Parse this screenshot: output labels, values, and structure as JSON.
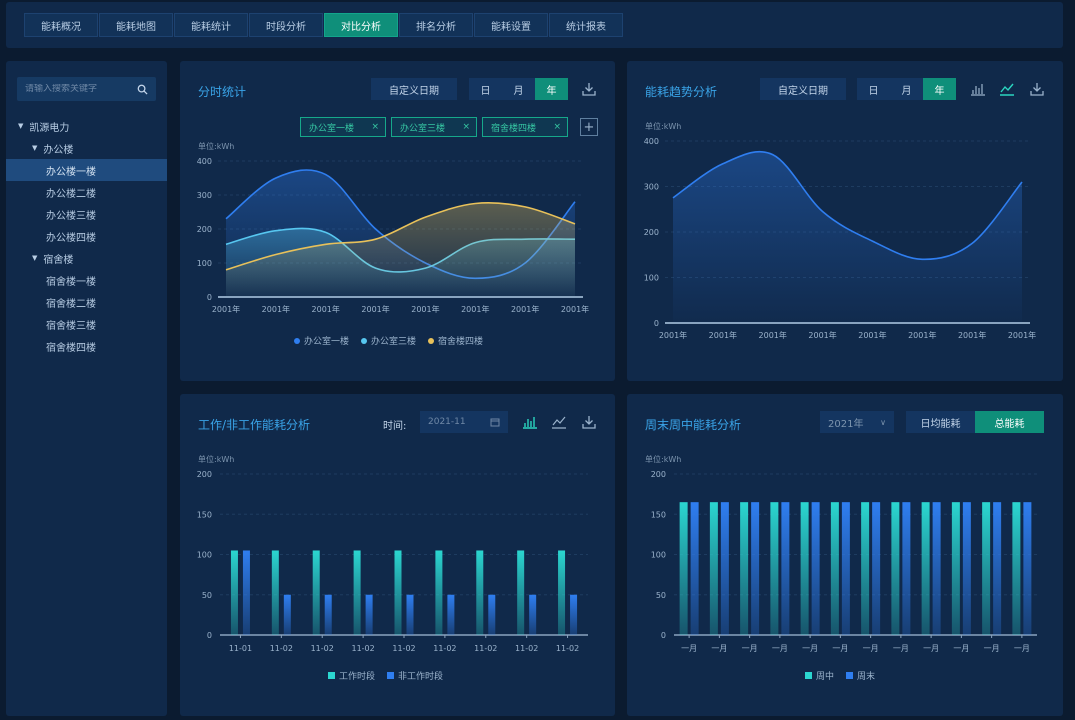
{
  "nav": {
    "tabs": [
      {
        "label": "能耗概况"
      },
      {
        "label": "能耗地图"
      },
      {
        "label": "能耗统计"
      },
      {
        "label": "时段分析"
      },
      {
        "label": "对比分析"
      },
      {
        "label": "排名分析"
      },
      {
        "label": "能耗设置"
      },
      {
        "label": "统计报表"
      }
    ],
    "active_index": 4
  },
  "sidebar": {
    "search_placeholder": "请输入搜索关键字",
    "tree": {
      "root": "凯源电力",
      "groups": [
        {
          "label": "办公楼",
          "items": [
            "办公楼一楼",
            "办公楼二楼",
            "办公楼三楼",
            "办公楼四楼"
          ]
        },
        {
          "label": "宿舍楼",
          "items": [
            "宿舍楼一楼",
            "宿舍楼二楼",
            "宿舍楼三楼",
            "宿舍楼四楼"
          ]
        }
      ],
      "selected": "办公楼一楼"
    }
  },
  "panel_hourly": {
    "title": "分时统计",
    "custom_date_label": "自定义日期",
    "segments": [
      "日",
      "月",
      "年"
    ],
    "active_segment": 2,
    "chips": [
      "办公室一楼",
      "办公室三楼",
      "宿舍楼四楼"
    ],
    "chip_close": "×",
    "add_chip": "+",
    "unit": "单位:kWh"
  },
  "panel_trend": {
    "title": "能耗趋势分析",
    "custom_date_label": "自定义日期",
    "segments": [
      "日",
      "月",
      "年"
    ],
    "active_segment": 2,
    "unit": "单位:kWh"
  },
  "panel_work": {
    "title": "工作/非工作能耗分析",
    "time_label": "时间:",
    "date_value": "2021-11",
    "unit": "单位:kWh"
  },
  "panel_weekend": {
    "title": "周末周中能耗分析",
    "year_value": "2021年",
    "toggle": [
      "日均能耗",
      "总能耗"
    ],
    "active_toggle": 1,
    "unit": "单位:kWh"
  },
  "colors": {
    "accent": "#0f8f7a",
    "title": "#3aa4e8",
    "blue": "#2f7ef0",
    "cyan": "#57c7f0",
    "yellow": "#e8c15a",
    "teal_bar": "#2bd6d0"
  },
  "chart_data": [
    {
      "type": "line",
      "x": [
        "2001年",
        "2001年",
        "2001年",
        "2001年",
        "2001年",
        "2001年",
        "2001年",
        "2001年"
      ],
      "ylim": [
        0,
        400
      ],
      "yticks": [
        "0",
        "100",
        "200",
        "300",
        "400"
      ],
      "area": true,
      "grid": true,
      "legend_position": "bottom",
      "series": [
        {
          "name": "办公室一楼",
          "color": "#2f7ef0",
          "values": [
            230,
            350,
            360,
            200,
            100,
            55,
            100,
            280
          ]
        },
        {
          "name": "办公室三楼",
          "color": "#57c7f0",
          "values": [
            155,
            195,
            190,
            85,
            85,
            160,
            170,
            170
          ]
        },
        {
          "name": "宿舍楼四楼",
          "color": "#e8c15a",
          "values": [
            80,
            125,
            155,
            170,
            235,
            275,
            265,
            215
          ]
        }
      ]
    },
    {
      "type": "line",
      "x": [
        "2001年",
        "2001年",
        "2001年",
        "2001年",
        "2001年",
        "2001年",
        "2001年",
        "2001年"
      ],
      "ylim": [
        0,
        400
      ],
      "yticks": [
        "0",
        "100",
        "200",
        "300",
        "400"
      ],
      "area": true,
      "grid": true,
      "series": [
        {
          "color": "#2f7ef0",
          "values": [
            275,
            350,
            370,
            245,
            180,
            140,
            175,
            310
          ]
        }
      ]
    },
    {
      "type": "bar",
      "categories": [
        "11-01",
        "11-02",
        "11-02",
        "11-02",
        "11-02",
        "11-02",
        "11-02",
        "11-02",
        "11-02"
      ],
      "ylim": [
        0,
        200
      ],
      "yticks": [
        "0",
        "50",
        "100",
        "150",
        "200"
      ],
      "grid": true,
      "legend_position": "bottom",
      "series": [
        {
          "name": "工作时段",
          "color": "#2bd6d0",
          "values": [
            105,
            105,
            105,
            105,
            105,
            105,
            105,
            105,
            105
          ]
        },
        {
          "name": "非工作时段",
          "color": "#2f7ef0",
          "values": [
            105,
            50,
            50,
            50,
            50,
            50,
            50,
            50,
            50
          ]
        }
      ]
    },
    {
      "type": "bar",
      "categories": [
        "一月",
        "一月",
        "一月",
        "一月",
        "一月",
        "一月",
        "一月",
        "一月",
        "一月",
        "一月",
        "一月",
        "一月"
      ],
      "ylim": [
        0,
        200
      ],
      "yticks": [
        "0",
        "50",
        "100",
        "150",
        "200"
      ],
      "grid": true,
      "legend_position": "bottom",
      "series": [
        {
          "name": "周中",
          "color": "#2bd6d0",
          "values": [
            165,
            165,
            165,
            165,
            165,
            165,
            165,
            165,
            165,
            165,
            165,
            165
          ]
        },
        {
          "name": "周末",
          "color": "#2f7ef0",
          "values": [
            165,
            165,
            165,
            165,
            165,
            165,
            165,
            165,
            165,
            165,
            165,
            165
          ]
        }
      ]
    }
  ]
}
